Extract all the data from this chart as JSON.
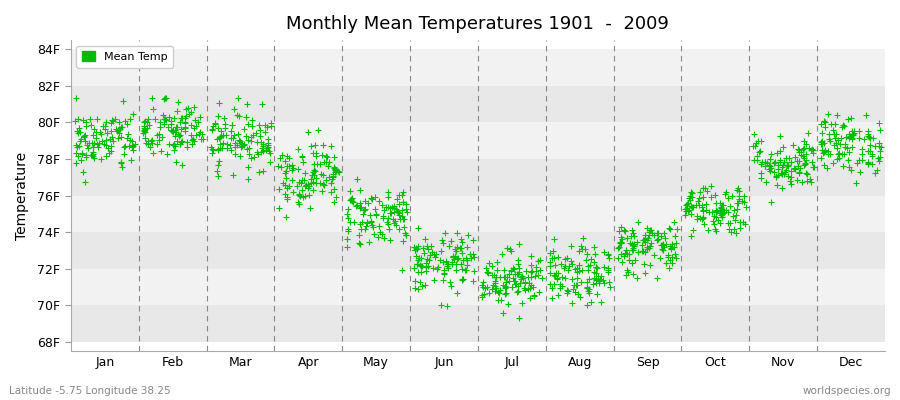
{
  "title": "Monthly Mean Temperatures 1901  -  2009",
  "ylabel": "Temperature",
  "xlabel_labels": [
    "Jan",
    "Feb",
    "Mar",
    "Apr",
    "May",
    "Jun",
    "Jul",
    "Aug",
    "Sep",
    "Oct",
    "Nov",
    "Dec"
  ],
  "ytick_labels": [
    "68F",
    "70F",
    "72F",
    "74F",
    "76F",
    "78F",
    "80F",
    "82F",
    "84F"
  ],
  "ytick_values": [
    68,
    70,
    72,
    74,
    76,
    78,
    80,
    82,
    84
  ],
  "ylim": [
    67.5,
    84.5
  ],
  "fig_bg_color": "#ffffff",
  "plot_bg_color": "#ffffff",
  "band_colors": [
    "#e8e8e8",
    "#f2f2f2"
  ],
  "marker_color": "#00bb00",
  "legend_label": "Mean Temp",
  "footer_left": "Latitude -5.75 Longitude 38.25",
  "footer_right": "worldspecies.org",
  "n_years": 109,
  "monthly_means": [
    79.0,
    79.5,
    79.1,
    77.2,
    74.9,
    72.3,
    71.5,
    71.6,
    73.2,
    75.3,
    77.8,
    78.8
  ],
  "monthly_stds": [
    0.85,
    0.85,
    0.8,
    0.9,
    0.85,
    0.8,
    0.75,
    0.8,
    0.75,
    0.7,
    0.75,
    0.8
  ]
}
